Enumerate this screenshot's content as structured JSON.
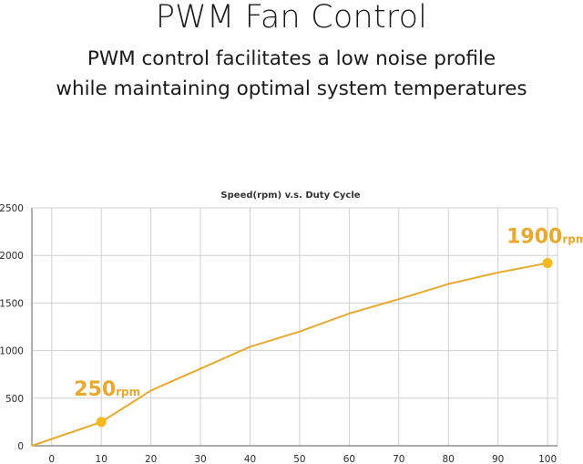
{
  "header": {
    "title": "PWM Fan Control",
    "subtitle_line1": "PWM control facilitates a low noise profile",
    "subtitle_line2": "while maintaining optimal system temperatures"
  },
  "colors": {
    "curve": "#e9a92e",
    "marker": "#f2b81c",
    "annotation": "#e9a92e",
    "grid": "#d0d0d0",
    "axis": "#7a7a7a"
  },
  "chart_data": {
    "type": "line",
    "title": "Speed(rpm)  v.s.  Duty Cycle",
    "xlabel": "",
    "ylabel": "",
    "x_ticks": [
      0,
      10,
      20,
      30,
      40,
      50,
      60,
      70,
      80,
      90,
      100
    ],
    "y_ticks": [
      0,
      500,
      1000,
      1500,
      2000,
      2500
    ],
    "xlim": [
      -4,
      102
    ],
    "ylim": [
      0,
      2500
    ],
    "grid": true,
    "series": [
      {
        "x": [
          -4,
          10,
          20,
          30,
          40,
          50,
          60,
          70,
          80,
          90,
          100
        ],
        "y": [
          0,
          250,
          580,
          810,
          1040,
          1200,
          1390,
          1540,
          1700,
          1820,
          1920
        ]
      }
    ],
    "markers": [
      {
        "x": 10,
        "y": 250,
        "value_label": "250",
        "unit_label": "rpm"
      },
      {
        "x": 100,
        "y": 1920,
        "value_label": "1900",
        "unit_label": "rpm"
      }
    ]
  }
}
